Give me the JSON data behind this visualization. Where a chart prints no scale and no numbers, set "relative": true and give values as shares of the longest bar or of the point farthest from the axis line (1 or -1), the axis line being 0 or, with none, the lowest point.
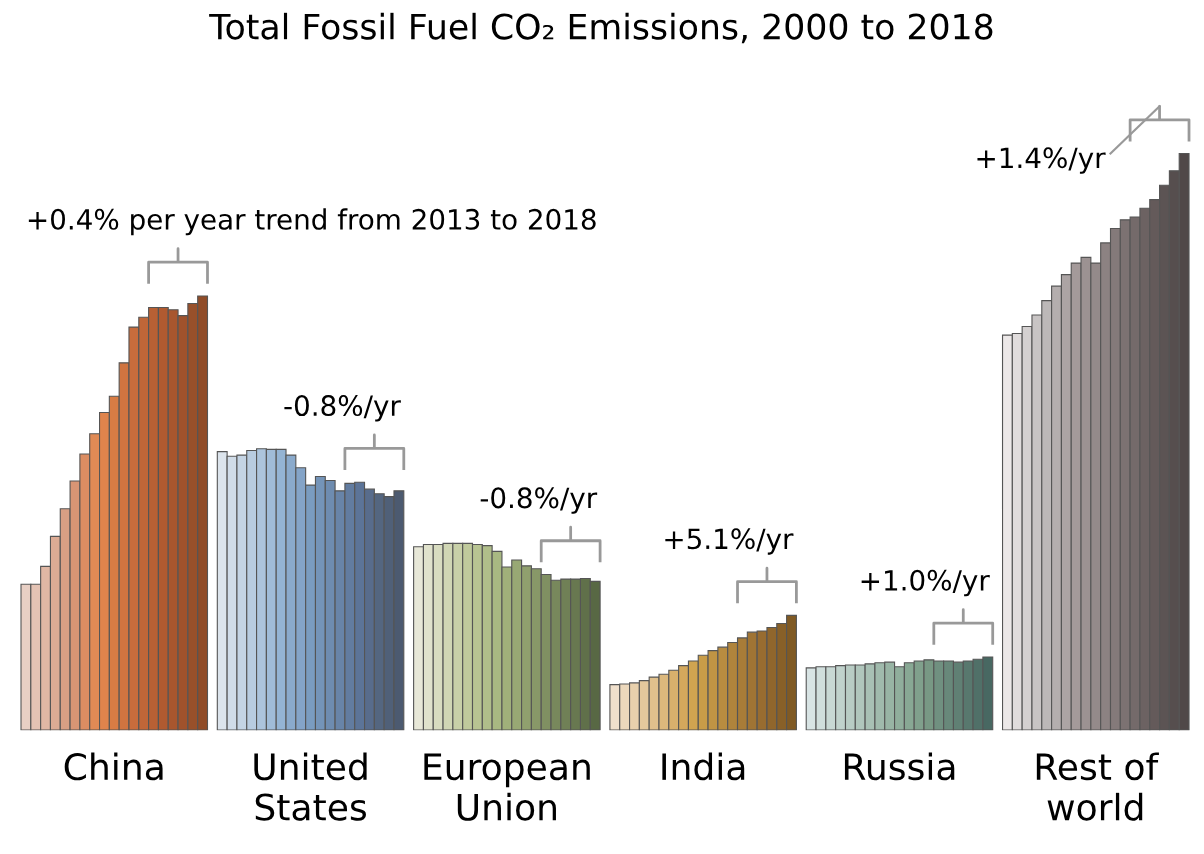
{
  "chart_data": {
    "type": "bar",
    "title": "Total Fossil Fuel CO₂ Emissions, 2000 to 2018",
    "relative": true,
    "categories": [
      null,
      null,
      null,
      null,
      null,
      null,
      null,
      null,
      null,
      "China",
      null,
      null,
      null,
      null,
      null,
      null,
      null,
      null,
      null,
      null,
      null,
      null,
      null,
      null,
      null,
      null,
      null,
      null,
      null,
      "United\nStates",
      null,
      null,
      null,
      null,
      null,
      null,
      null,
      null,
      null,
      null,
      null,
      null,
      null,
      null,
      null,
      null,
      null,
      null,
      null,
      "European\nUnion",
      null,
      null,
      null,
      null,
      null,
      null,
      null,
      null,
      null,
      null,
      null,
      null,
      null,
      null,
      null,
      null,
      null,
      null,
      null,
      "India",
      null,
      null,
      null,
      null,
      null,
      null,
      null,
      null,
      null,
      null,
      null,
      null,
      null,
      null,
      null,
      null,
      null,
      null,
      null,
      "Russia",
      null,
      null,
      null,
      null,
      null,
      null,
      null,
      null,
      null,
      null,
      null,
      null,
      null,
      null,
      null,
      null,
      null,
      null,
      null,
      "Rest of\nworld",
      null,
      null,
      null,
      null,
      null,
      null,
      null,
      null,
      null
    ],
    "values": [
      0.253,
      0.253,
      0.284,
      0.336,
      0.384,
      0.432,
      0.479,
      0.514,
      0.551,
      0.579,
      0.637,
      0.699,
      0.716,
      0.733,
      0.733,
      0.729,
      0.719,
      0.74,
      0.753,
      null,
      0.483,
      0.475,
      0.477,
      0.485,
      0.488,
      0.487,
      0.487,
      0.477,
      0.455,
      0.425,
      0.44,
      0.433,
      0.415,
      0.428,
      0.43,
      0.418,
      0.41,
      0.405,
      0.415,
      null,
      0.318,
      0.322,
      0.322,
      0.324,
      0.324,
      0.324,
      0.322,
      0.32,
      0.31,
      0.283,
      0.295,
      0.285,
      0.28,
      0.27,
      0.26,
      0.262,
      0.262,
      0.263,
      0.258,
      null,
      0.079,
      0.08,
      0.082,
      0.086,
      0.092,
      0.097,
      0.104,
      0.112,
      0.12,
      0.13,
      0.138,
      0.144,
      0.152,
      0.16,
      0.17,
      0.172,
      0.178,
      0.185,
      0.199,
      null,
      0.108,
      0.11,
      0.11,
      0.112,
      0.113,
      0.113,
      0.115,
      0.117,
      0.118,
      0.11,
      0.117,
      0.12,
      0.122,
      0.12,
      0.12,
      0.118,
      0.12,
      0.123,
      0.127,
      null,
      0.685,
      0.688,
      0.7,
      0.72,
      0.745,
      0.77,
      0.79,
      0.81,
      0.82,
      0.81,
      0.845,
      0.87,
      0.885,
      0.89,
      0.905,
      0.92,
      0.945,
      0.97,
      1.0
    ],
    "colors": [
      "#e8cfc4",
      "#e4c3b4",
      "#e0b7a4",
      "#dcab94",
      "#d89f84",
      "#d89574",
      "#dc8d62",
      "#e08a55",
      "#e0844c",
      "#d87c44",
      "#d07440",
      "#c86c3c",
      "#c06638",
      "#b86034",
      "#b05a30",
      "#a8562e",
      "#a0522c",
      "#98502a",
      "#904c28",
      null,
      "#dce4ec",
      "#d0dce8",
      "#c4d4e4",
      "#b8cce0",
      "#acc4dc",
      "#a0bcd8",
      "#94b4d4",
      "#8aaacc",
      "#84a4c8",
      "#7a9cc0",
      "#7494b8",
      "#6e8cb0",
      "#6884a8",
      "#627ca0",
      "#5c7498",
      "#586c8c",
      "#546680",
      "#506078",
      "#4c5a70",
      null,
      "#e8e8d8",
      "#e0e2cc",
      "#d8dcc0",
      "#d0d6b4",
      "#c8d0a8",
      "#c0ca9c",
      "#b8c492",
      "#b0be8a",
      "#a8b882",
      "#a0b07a",
      "#98a874",
      "#90a06e",
      "#889868",
      "#809062",
      "#78885c",
      "#708056",
      "#687850",
      "#60704a",
      "#586844",
      null,
      "#f0e0cc",
      "#ecd8bc",
      "#e8d0ac",
      "#e4c89c",
      "#e0c08c",
      "#dcb87c",
      "#d8b06c",
      "#d4a85c",
      "#d0a450",
      "#c89c48",
      "#c09444",
      "#b88c40",
      "#b0843c",
      "#a87c38",
      "#a07434",
      "#986c30",
      "#90662c",
      "#886028",
      "#805a24",
      null,
      "#d8e4e4",
      "#d0dedc",
      "#c8d8d4",
      "#c0d2cc",
      "#b8ccc4",
      "#b0c6bc",
      "#a8c0b4",
      "#a0baac",
      "#98b4a4",
      "#90ae9c",
      "#88a894",
      "#80a08c",
      "#789884",
      "#709080",
      "#68887a",
      "#608074",
      "#58786e",
      "#507068",
      "#486862",
      null,
      "#ece8e8",
      "#e0dcdc",
      "#d4d0d0",
      "#c8c4c4",
      "#bcb8b8",
      "#b4aeae",
      "#aca4a4",
      "#a49a9a",
      "#9c9292",
      "#948a8a",
      "#8c8282",
      "#847a7a",
      "#7c7272",
      "#746a6a",
      "#6c6262",
      "#645a5a",
      "#5c5454",
      "#564e4e",
      "#504848"
    ],
    "annotations": [
      "+0.4% per year trend from 2013 to 2018",
      "-0.8%/yr",
      "-0.8%/yr",
      "+5.1%/yr",
      "+1.0%/yr",
      "+1.4%/yr"
    ],
    "grid": false,
    "legend": false
  }
}
